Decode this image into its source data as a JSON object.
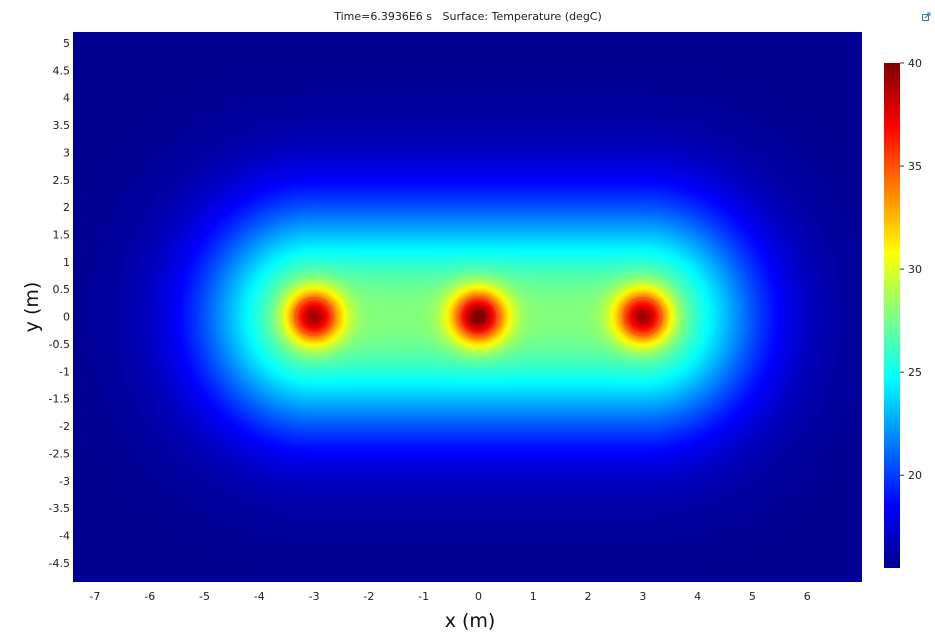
{
  "window": {
    "corner_icon": "export-image-icon"
  },
  "chart_data": {
    "type": "heatmap",
    "title": "Time=6.3936E6 s   Surface: Temperature (degC)",
    "xlabel": "x (m)",
    "ylabel": "y (m)",
    "xlim": [
      -7.4,
      7.0
    ],
    "ylim": [
      -4.85,
      5.2
    ],
    "x_ticks": [
      -7,
      -6,
      -5,
      -4,
      -3,
      -2,
      -1,
      0,
      1,
      2,
      3,
      4,
      5,
      6
    ],
    "x_tick_labels": [
      "-7",
      "-6",
      "-5",
      "-4",
      "-3",
      "-2",
      "-1",
      "0",
      "1",
      "2",
      "3",
      "4",
      "5",
      "6"
    ],
    "y_ticks": [
      5,
      4.5,
      4,
      3.5,
      3,
      2.5,
      2,
      1.5,
      1,
      0.5,
      0,
      -0.5,
      -1,
      -1.5,
      -2,
      -2.5,
      -3,
      -3.5,
      -4,
      -4.5
    ],
    "y_tick_labels": [
      "5",
      "4.5",
      "4",
      "3.5",
      "3",
      "2.5",
      "2",
      "1.5",
      "1",
      "0.5",
      "0",
      "-0.5",
      "-1",
      "-1.5",
      "-2",
      "-2.5",
      "-3",
      "-3.5",
      "-4",
      "-4.5"
    ],
    "colorscale": "rainbow",
    "color_range": [
      15.5,
      40
    ],
    "colorbar_ticks": [
      40,
      35,
      30,
      25,
      20
    ],
    "colorbar_tick_labels": [
      "40",
      "35",
      "30",
      "25",
      "20"
    ],
    "heat_sources": [
      {
        "x": -3,
        "y": 0,
        "peak": 39
      },
      {
        "x": 0,
        "y": 0,
        "peak": 40
      },
      {
        "x": 3,
        "y": 0,
        "peak": 39
      }
    ],
    "source_radius": 0.35,
    "background_temperature": 16,
    "grid": false
  }
}
